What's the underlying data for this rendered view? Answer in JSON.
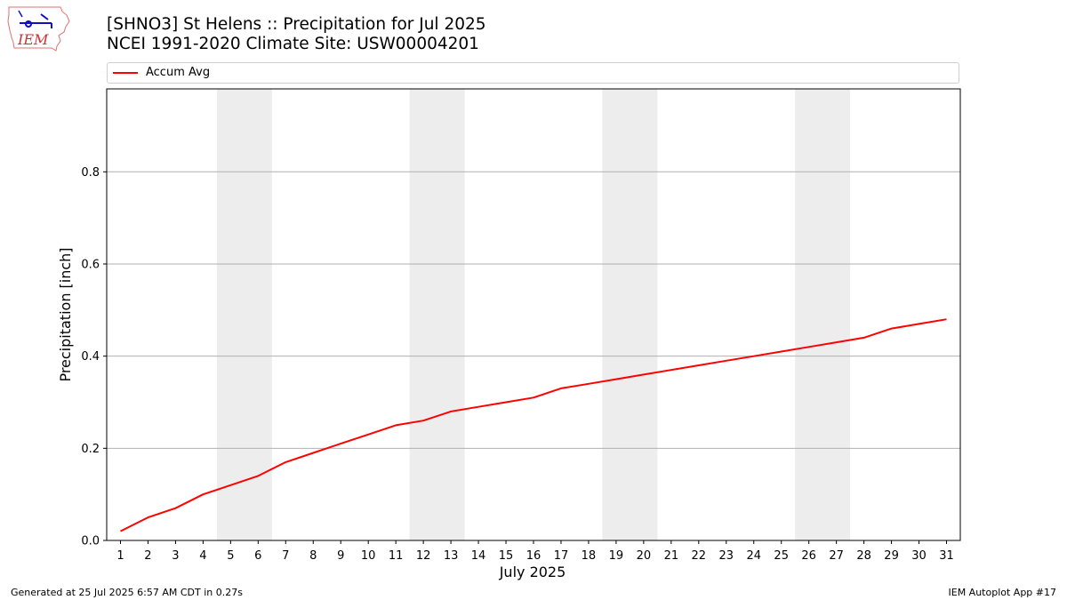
{
  "header": {
    "title_line1": "[SHNO3] St Helens :: Precipitation for Jul 2025",
    "title_line2": "NCEI 1991-2020 Climate Site: USW00004201"
  },
  "logo": {
    "text": "IEM",
    "icon": "iem-iowa-logo"
  },
  "footer": {
    "generated": "Generated at 25 Jul 2025 6:57 AM CDT in 0.27s",
    "app": "IEM Autoplot App #17"
  },
  "chart_data": {
    "type": "line",
    "xlabel": "July 2025",
    "ylabel": "Precipitation [inch]",
    "x": [
      1,
      2,
      3,
      4,
      5,
      6,
      7,
      8,
      9,
      10,
      11,
      12,
      13,
      14,
      15,
      16,
      17,
      18,
      19,
      20,
      21,
      22,
      23,
      24,
      25,
      26,
      27,
      28,
      29,
      30,
      31
    ],
    "xlim": [
      0.5,
      31.5
    ],
    "ylim": [
      0,
      0.98
    ],
    "yticks": [
      0.0,
      0.2,
      0.4,
      0.6,
      0.8
    ],
    "ytick_labels": [
      "0.0",
      "0.2",
      "0.4",
      "0.6",
      "0.8"
    ],
    "grid": "y",
    "weekend_shading": [
      [
        4.5,
        6.5
      ],
      [
        11.5,
        13.5
      ],
      [
        18.5,
        20.5
      ],
      [
        25.5,
        27.5
      ]
    ],
    "legend_position": "top",
    "series": [
      {
        "name": "Accum Avg",
        "color": "#ff0000",
        "values": [
          0.02,
          0.05,
          0.07,
          0.1,
          0.12,
          0.14,
          0.17,
          0.19,
          0.21,
          0.23,
          0.25,
          0.26,
          0.28,
          0.29,
          0.3,
          0.31,
          0.33,
          0.34,
          0.35,
          0.36,
          0.37,
          0.38,
          0.39,
          0.4,
          0.41,
          0.42,
          0.43,
          0.44,
          0.46,
          0.47,
          0.48
        ]
      }
    ]
  }
}
